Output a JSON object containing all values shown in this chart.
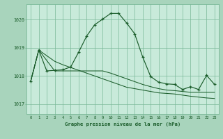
{
  "title": "Graphe pression niveau de la mer (hPa)",
  "background_color": "#a8d4bc",
  "plot_bg_color": "#c8eada",
  "grid_color": "#7ab898",
  "line_color": "#1a5c2a",
  "ylim": [
    1016.65,
    1020.55
  ],
  "yticks": [
    1017,
    1018,
    1019,
    1020
  ],
  "series1_y": [
    1017.82,
    1018.92,
    1018.18,
    1018.2,
    1018.22,
    1018.32,
    1018.85,
    1019.42,
    1019.82,
    1020.02,
    1020.22,
    1020.22,
    1019.88,
    1019.5,
    1018.68,
    1017.98,
    1017.78,
    1017.72,
    1017.7,
    1017.52,
    1017.62,
    1017.52,
    1018.02,
    1017.7
  ],
  "series2_y": [
    1017.82,
    1018.92,
    1018.55,
    1018.18,
    1018.18,
    1018.18,
    1018.18,
    1018.18,
    1018.18,
    1018.18,
    1018.1,
    1018.0,
    1017.9,
    1017.8,
    1017.7,
    1017.62,
    1017.55,
    1017.5,
    1017.48,
    1017.45,
    1017.42,
    1017.42,
    1017.42,
    1017.42
  ],
  "series3_y": [
    1017.82,
    1018.92,
    1018.72,
    1018.52,
    1018.4,
    1018.3,
    1018.2,
    1018.1,
    1018.0,
    1017.9,
    1017.8,
    1017.7,
    1017.6,
    1017.55,
    1017.5,
    1017.45,
    1017.4,
    1017.38,
    1017.36,
    1017.32,
    1017.28,
    1017.25,
    1017.22,
    1017.2
  ]
}
